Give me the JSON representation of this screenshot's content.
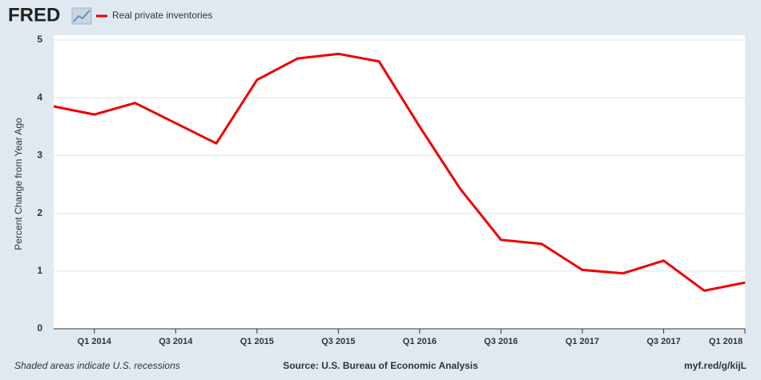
{
  "logo": "FRED",
  "footer": {
    "note": "Shaded areas indicate U.S. recessions",
    "source": "Source: U.S. Bureau of Economic Analysis",
    "link": "myf.red/g/kijL"
  },
  "chart_data": {
    "type": "line",
    "ylabel": "Percent Change from Year Ago",
    "categories": [
      null,
      "Q1 2014",
      null,
      "Q3 2014",
      null,
      "Q1 2015",
      null,
      "Q3 2015",
      null,
      "Q1 2016",
      null,
      "Q3 2016",
      null,
      "Q1 2017",
      null,
      "Q3 2017",
      null,
      "Q1 2018"
    ],
    "series": [
      {
        "name": "Real private inventories",
        "color": "#ee0000",
        "values": [
          3.85,
          3.71,
          3.91,
          3.56,
          3.21,
          4.31,
          4.68,
          4.76,
          4.63,
          3.5,
          2.42,
          1.54,
          1.47,
          1.02,
          0.96,
          1.18,
          0.66,
          0.8
        ]
      }
    ],
    "ylim": [
      0,
      5
    ],
    "yticks": [
      0,
      1,
      2,
      3,
      4,
      5
    ],
    "grid": true
  }
}
